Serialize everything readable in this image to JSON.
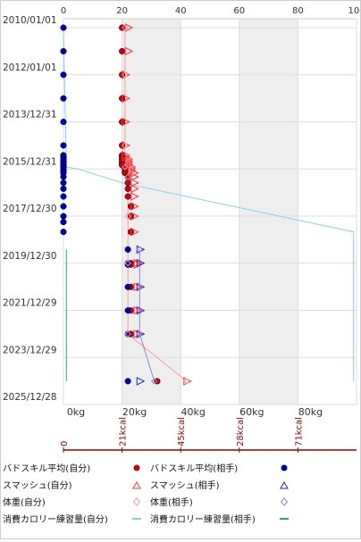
{
  "chart_data": {
    "type": "scatter",
    "orientation": "horizontal-values-vertical-dates",
    "dates": [
      "2010/01/01",
      "2011/01/01",
      "2012/01/01",
      "2013/01/01",
      "2013/12/31",
      "2014/12/31",
      "2015/06/01",
      "2015/07/01",
      "2015/08/01",
      "2015/09/01",
      "2015/10/01",
      "2015/11/01",
      "2015/12/01",
      "2016/01/01",
      "2016/02/01",
      "2016/03/01",
      "2016/05/01",
      "2016/08/01",
      "2016/11/01",
      "2017/03/01",
      "2017/08/01",
      "2018/01/01",
      "2018/04/01",
      "2018/09/01",
      "2019/06/01",
      "2019/12/30",
      "2020/01/20",
      "2021/01/01",
      "2022/01/01",
      "2023/01/01",
      "2025/01/01"
    ],
    "date_axis": {
      "ticks": [
        "2010/01/01",
        "2012/01/01",
        "2013/12/31",
        "2015/12/31",
        "2017/12/30",
        "2019/12/30",
        "2021/12/29",
        "2023/12/29",
        "2025/12/28"
      ],
      "range": [
        "2010/01/01",
        "2025/12/28"
      ]
    },
    "top_axis": {
      "ticks": [
        "0",
        "20",
        "40",
        "60",
        "80",
        "100"
      ],
      "range": [
        0,
        100
      ]
    },
    "bottom_axis": {
      "ticks": [
        "0kg",
        "20kg",
        "40kg",
        "60kg",
        "80kg"
      ],
      "range": [
        0,
        100
      ]
    },
    "calorie_axis": {
      "ticks": [
        "0",
        "21kcal",
        "45kcal",
        "28kcal",
        "71kcal"
      ]
    },
    "grid": true,
    "shaded_bands": [
      [
        20,
        40
      ],
      [
        60,
        80
      ]
    ],
    "legend_position": "bottom",
    "series": [
      {
        "name": "バドスキル平均(自分)",
        "color": "#cc0000",
        "marker": "circle-filled",
        "points": [
          {
            "date": "2010/01/01",
            "value": 20
          },
          {
            "date": "2011/01/01",
            "value": 20
          },
          {
            "date": "2012/01/01",
            "value": 20
          },
          {
            "date": "2013/01/01",
            "value": 20
          },
          {
            "date": "2013/12/31",
            "value": 20
          },
          {
            "date": "2014/12/31",
            "value": 20
          },
          {
            "date": "2015/06/01",
            "value": 20
          },
          {
            "date": "2015/07/01",
            "value": 20
          },
          {
            "date": "2015/08/01",
            "value": 20
          },
          {
            "date": "2015/09/01",
            "value": 20
          },
          {
            "date": "2015/10/01",
            "value": 20
          },
          {
            "date": "2015/11/01",
            "value": 20
          },
          {
            "date": "2015/12/01",
            "value": 21
          },
          {
            "date": "2016/01/01",
            "value": 21
          },
          {
            "date": "2016/02/01",
            "value": 21
          },
          {
            "date": "2016/03/01",
            "value": 21
          },
          {
            "date": "2016/05/01",
            "value": 22
          },
          {
            "date": "2016/08/01",
            "value": 22
          },
          {
            "date": "2016/11/01",
            "value": 22
          },
          {
            "date": "2017/03/01",
            "value": 22
          },
          {
            "date": "2017/08/01",
            "value": 23
          },
          {
            "date": "2018/01/01",
            "value": 23
          },
          {
            "date": "2018/09/01",
            "value": 23
          },
          {
            "date": "2019/12/30",
            "value": 23
          },
          {
            "date": "2020/01/20",
            "value": 23
          },
          {
            "date": "2021/01/01",
            "value": 23
          },
          {
            "date": "2022/01/01",
            "value": 23
          },
          {
            "date": "2023/01/01",
            "value": 23
          },
          {
            "date": "2025/01/01",
            "value": 32
          }
        ]
      },
      {
        "name": "バドスキル平均(相手)",
        "color": "#0000aa",
        "marker": "circle-filled",
        "points": [
          {
            "date": "2010/01/01",
            "value": 0
          },
          {
            "date": "2011/01/01",
            "value": 0
          },
          {
            "date": "2012/01/01",
            "value": 0
          },
          {
            "date": "2013/01/01",
            "value": 0
          },
          {
            "date": "2013/12/31",
            "value": 0
          },
          {
            "date": "2014/12/31",
            "value": 0
          },
          {
            "date": "2015/06/01",
            "value": 0
          },
          {
            "date": "2015/07/01",
            "value": 0
          },
          {
            "date": "2015/08/01",
            "value": 0
          },
          {
            "date": "2015/09/01",
            "value": 0
          },
          {
            "date": "2015/10/01",
            "value": 0
          },
          {
            "date": "2015/11/01",
            "value": 0
          },
          {
            "date": "2015/12/01",
            "value": 0
          },
          {
            "date": "2016/01/01",
            "value": 0
          },
          {
            "date": "2016/02/01",
            "value": 0
          },
          {
            "date": "2016/03/01",
            "value": 0
          },
          {
            "date": "2016/05/01",
            "value": 0
          },
          {
            "date": "2016/08/01",
            "value": 0
          },
          {
            "date": "2016/11/01",
            "value": 0
          },
          {
            "date": "2017/03/01",
            "value": 0
          },
          {
            "date": "2017/08/01",
            "value": 0
          },
          {
            "date": "2018/01/01",
            "value": 0
          },
          {
            "date": "2018/04/01",
            "value": 0
          },
          {
            "date": "2018/09/01",
            "value": 0
          },
          {
            "date": "2019/06/01",
            "value": 22
          },
          {
            "date": "2019/12/30",
            "value": 22
          },
          {
            "date": "2020/01/20",
            "value": 22
          },
          {
            "date": "2021/01/01",
            "value": 22
          },
          {
            "date": "2022/01/01",
            "value": 22
          },
          {
            "date": "2023/01/01",
            "value": 22
          },
          {
            "date": "2025/01/01",
            "value": 22
          }
        ]
      },
      {
        "name": "スマッシュ(自分)",
        "color": "#ff3333",
        "marker": "triangle-open",
        "points": [
          {
            "date": "2010/01/01",
            "value": 22
          },
          {
            "date": "2011/01/01",
            "value": 22
          },
          {
            "date": "2012/01/01",
            "value": 21
          },
          {
            "date": "2013/01/01",
            "value": 21
          },
          {
            "date": "2013/12/31",
            "value": 21
          },
          {
            "date": "2014/12/31",
            "value": 21
          },
          {
            "date": "2015/06/01",
            "value": 21
          },
          {
            "date": "2015/07/01",
            "value": 21
          },
          {
            "date": "2015/08/01",
            "value": 22
          },
          {
            "date": "2015/09/01",
            "value": 22
          },
          {
            "date": "2015/10/01",
            "value": 22
          },
          {
            "date": "2015/11/01",
            "value": 22
          },
          {
            "date": "2015/12/01",
            "value": 23
          },
          {
            "date": "2016/01/01",
            "value": 23
          },
          {
            "date": "2016/02/01",
            "value": 23
          },
          {
            "date": "2016/03/01",
            "value": 24
          },
          {
            "date": "2016/05/01",
            "value": 24
          },
          {
            "date": "2016/08/01",
            "value": 24
          },
          {
            "date": "2016/11/01",
            "value": 24
          },
          {
            "date": "2017/03/01",
            "value": 24
          },
          {
            "date": "2017/08/01",
            "value": 24
          },
          {
            "date": "2018/01/01",
            "value": 24
          },
          {
            "date": "2018/09/01",
            "value": 24
          },
          {
            "date": "2019/12/30",
            "value": 25
          },
          {
            "date": "2020/01/20",
            "value": 25
          },
          {
            "date": "2021/01/01",
            "value": 25
          },
          {
            "date": "2022/01/01",
            "value": 25
          },
          {
            "date": "2023/01/01",
            "value": 25
          },
          {
            "date": "2025/01/01",
            "value": 42
          }
        ]
      },
      {
        "name": "スマッシュ(相手)",
        "color": "#2222cc",
        "marker": "triangle-open",
        "points": [
          {
            "date": "2019/06/01",
            "value": 26
          },
          {
            "date": "2019/12/30",
            "value": 26
          },
          {
            "date": "2021/01/01",
            "value": 26
          },
          {
            "date": "2022/01/01",
            "value": 26
          },
          {
            "date": "2023/01/01",
            "value": 26
          },
          {
            "date": "2025/01/01",
            "value": 26
          }
        ]
      },
      {
        "name": "体重(自分)",
        "color": "#ff9999",
        "marker": "diamond-open",
        "line": true,
        "points": [
          {
            "date": "2010/01/01",
            "value": 21
          },
          {
            "date": "2012/01/01",
            "value": 21
          },
          {
            "date": "2014/12/31",
            "value": 21
          },
          {
            "date": "2015/12/01",
            "value": 21
          },
          {
            "date": "2016/05/01",
            "value": 22
          },
          {
            "date": "2018/01/01",
            "value": 22
          },
          {
            "date": "2019/12/30",
            "value": 22
          },
          {
            "date": "2023/01/01",
            "value": 22
          },
          {
            "date": "2025/01/01",
            "value": 42
          }
        ]
      },
      {
        "name": "体重(相手)",
        "color": "#8888cc",
        "marker": "diamond-open",
        "line": true,
        "points": [
          {
            "date": "2019/06/01",
            "value": 26
          },
          {
            "date": "2021/01/01",
            "value": 26
          },
          {
            "date": "2023/01/01",
            "value": 26
          },
          {
            "date": "2025/01/01",
            "value": 31
          }
        ]
      },
      {
        "name": "消費カロリー練習量(自分)",
        "color": "#88ccee",
        "marker": "line",
        "points": [
          {
            "date": "2010/01/01",
            "value": 0
          },
          {
            "date": "2015/12/01",
            "value": 1
          },
          {
            "date": "2016/01/01",
            "value": 5
          },
          {
            "date": "2016/08/01",
            "value": 20
          },
          {
            "date": "2018/09/01",
            "value": 99
          },
          {
            "date": "2025/01/01",
            "value": 99
          }
        ]
      },
      {
        "name": "消費カロリー練習量(相手)",
        "color": "#22aa88",
        "marker": "line",
        "points": [
          {
            "date": "2019/06/01",
            "value": 1
          },
          {
            "date": "2025/01/01",
            "value": 1
          }
        ]
      }
    ]
  }
}
